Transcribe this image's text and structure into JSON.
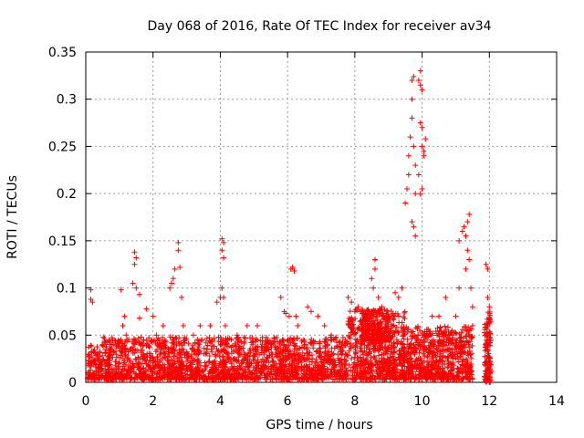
{
  "chart_data": {
    "type": "scatter",
    "title": "Day 068 of 2016, Rate Of TEC Index for receiver av34",
    "xlabel": "GPS time / hours",
    "ylabel": "ROTI / TECUs",
    "xlim": [
      0,
      14
    ],
    "ylim": [
      0,
      0.35
    ],
    "x_ticks": [
      0,
      2,
      4,
      6,
      8,
      10,
      12,
      14
    ],
    "y_ticks": [
      0,
      0.05,
      0.1,
      0.15,
      0.2,
      0.25,
      0.3,
      0.35
    ],
    "x_tick_labels": [
      "0",
      "2",
      "4",
      "6",
      "8",
      "10",
      "12",
      "14"
    ],
    "y_tick_labels": [
      "0",
      "0.05",
      "0.1",
      "0.15",
      "0.2",
      "0.25",
      "0.3",
      "0.35"
    ],
    "grid": true,
    "marker": "+",
    "marker_color": "#ff0000",
    "series": [
      {
        "name": "ROTI",
        "points": [
          [
            0.15,
            0.098
          ],
          [
            0.15,
            0.088
          ],
          [
            0.2,
            0.085
          ],
          [
            0.1,
            0.02
          ],
          [
            0.3,
            0.03
          ],
          [
            0.4,
            0.015
          ],
          [
            0.5,
            0.04
          ],
          [
            1.05,
            0.098
          ],
          [
            1.1,
            0.06
          ],
          [
            1.15,
            0.07
          ],
          [
            1.2,
            0.05
          ],
          [
            1.45,
            0.138
          ],
          [
            1.5,
            0.132
          ],
          [
            1.45,
            0.125
          ],
          [
            1.4,
            0.105
          ],
          [
            1.5,
            0.1
          ],
          [
            1.6,
            0.093
          ],
          [
            1.6,
            0.068
          ],
          [
            1.8,
            0.078
          ],
          [
            2.0,
            0.07
          ],
          [
            2.1,
            0.05
          ],
          [
            2.3,
            0.06
          ],
          [
            2.5,
            0.1
          ],
          [
            2.55,
            0.105
          ],
          [
            2.6,
            0.11
          ],
          [
            2.65,
            0.12
          ],
          [
            2.75,
            0.148
          ],
          [
            2.75,
            0.14
          ],
          [
            2.8,
            0.122
          ],
          [
            2.85,
            0.09
          ],
          [
            2.9,
            0.06
          ],
          [
            3.2,
            0.05
          ],
          [
            3.4,
            0.06
          ],
          [
            3.7,
            0.06
          ],
          [
            3.9,
            0.085
          ],
          [
            4.0,
            0.09
          ],
          [
            4.05,
            0.152
          ],
          [
            4.1,
            0.148
          ],
          [
            4.05,
            0.14
          ],
          [
            4.1,
            0.132
          ],
          [
            4.05,
            0.1
          ],
          [
            4.1,
            0.09
          ],
          [
            4.15,
            0.06
          ],
          [
            4.5,
            0.05
          ],
          [
            4.8,
            0.06
          ],
          [
            5.1,
            0.06
          ],
          [
            5.5,
            0.04
          ],
          [
            5.8,
            0.09
          ],
          [
            5.9,
            0.075
          ],
          [
            5.95,
            0.073
          ],
          [
            6.05,
            0.07
          ],
          [
            6.1,
            0.12
          ],
          [
            6.15,
            0.122
          ],
          [
            6.2,
            0.118
          ],
          [
            6.25,
            0.07
          ],
          [
            6.3,
            0.06
          ],
          [
            6.6,
            0.08
          ],
          [
            6.7,
            0.075
          ],
          [
            6.9,
            0.07
          ],
          [
            7.1,
            0.06
          ],
          [
            7.3,
            0.05
          ],
          [
            7.8,
            0.09
          ],
          [
            7.9,
            0.085
          ],
          [
            8.0,
            0.075
          ],
          [
            8.1,
            0.08
          ],
          [
            8.3,
            0.065
          ],
          [
            8.5,
            0.11
          ],
          [
            8.55,
            0.1
          ],
          [
            8.6,
            0.13
          ],
          [
            8.6,
            0.12
          ],
          [
            8.7,
            0.09
          ],
          [
            8.8,
            0.08
          ],
          [
            9.0,
            0.07
          ],
          [
            9.2,
            0.095
          ],
          [
            9.3,
            0.09
          ],
          [
            9.4,
            0.1
          ],
          [
            9.5,
            0.19
          ],
          [
            9.55,
            0.205
          ],
          [
            9.6,
            0.22
          ],
          [
            9.6,
            0.24
          ],
          [
            9.65,
            0.26
          ],
          [
            9.7,
            0.28
          ],
          [
            9.7,
            0.3
          ],
          [
            9.7,
            0.32
          ],
          [
            9.75,
            0.324
          ],
          [
            9.75,
            0.25
          ],
          [
            9.8,
            0.23
          ],
          [
            9.8,
            0.2
          ],
          [
            9.75,
            0.165
          ],
          [
            9.8,
            0.155
          ],
          [
            9.7,
            0.17
          ],
          [
            9.9,
            0.32
          ],
          [
            9.95,
            0.33
          ],
          [
            9.95,
            0.315
          ],
          [
            10.0,
            0.31
          ],
          [
            9.95,
            0.275
          ],
          [
            10.0,
            0.27
          ],
          [
            10.0,
            0.25
          ],
          [
            10.05,
            0.245
          ],
          [
            10.1,
            0.258
          ],
          [
            10.05,
            0.24
          ],
          [
            9.95,
            0.2
          ],
          [
            10.0,
            0.205
          ],
          [
            9.9,
            0.22
          ],
          [
            10.3,
            0.07
          ],
          [
            10.5,
            0.07
          ],
          [
            10.7,
            0.09
          ],
          [
            10.9,
            0.05
          ],
          [
            11.0,
            0.07
          ],
          [
            11.1,
            0.1
          ],
          [
            11.1,
            0.15
          ],
          [
            11.2,
            0.16
          ],
          [
            11.25,
            0.165
          ],
          [
            11.3,
            0.155
          ],
          [
            11.35,
            0.17
          ],
          [
            11.4,
            0.178
          ],
          [
            11.35,
            0.14
          ],
          [
            11.4,
            0.13
          ],
          [
            11.3,
            0.12
          ],
          [
            11.45,
            0.1
          ],
          [
            11.5,
            0.08
          ],
          [
            11.5,
            0.06
          ],
          [
            11.9,
            0.125
          ],
          [
            11.95,
            0.12
          ],
          [
            11.95,
            0.09
          ],
          [
            12.0,
            0.08
          ],
          [
            11.95,
            0.06
          ],
          [
            11.95,
            0.04
          ],
          [
            12.0,
            0.02
          ],
          [
            12.0,
            0.005
          ]
        ]
      }
    ]
  }
}
